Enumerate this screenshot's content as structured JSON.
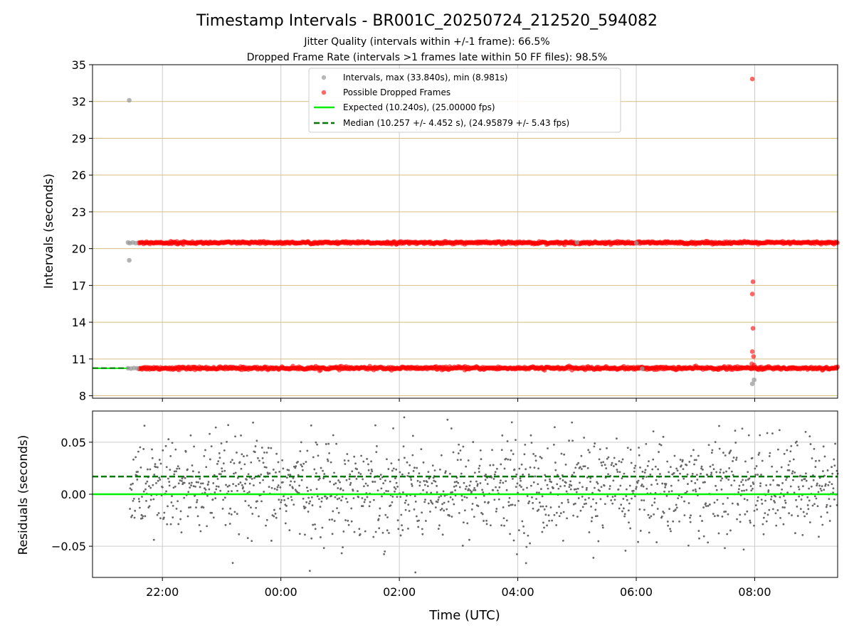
{
  "figure": {
    "title": "Timestamp Intervals - BR001C_20250724_212520_594082",
    "subtitle_1": "Jitter Quality (intervals within +/-1 frame): 66.5%",
    "subtitle_2": "Dropped Frame Rate (intervals >1 frames late within 50 FF files): 98.5%",
    "xlabel": "Time (UTC)"
  },
  "colors": {
    "intervals": "#999999",
    "dropped": "#ff0000",
    "expected": "#00ee00",
    "median": "#007700",
    "residuals": "#666666",
    "hgrid_top": "#d8bf80",
    "grid": "#cccccc"
  },
  "chart_data": [
    {
      "id": "intervals-panel",
      "type": "scatter",
      "ylabel": "Intervals (seconds)",
      "x_unit": "hours since 21:00 UTC (tick labels shown as HH:MM)",
      "xlim": [
        20.82,
        33.4
      ],
      "ylim": [
        7.8,
        35.0
      ],
      "yticks": [
        8,
        11,
        14,
        17,
        20,
        23,
        26,
        29,
        32,
        35
      ],
      "xticks": [
        22,
        24,
        26,
        28,
        30,
        32
      ],
      "xticklabels": [
        "22:00",
        "00:00",
        "02:00",
        "04:00",
        "06:00",
        "08:00"
      ],
      "grid": "horizontal",
      "legend_position": "top-center",
      "legend": [
        "Intervals, max (33.840s), min (8.981s)",
        "Possible Dropped Frames",
        "Expected (10.240s), (25.00000 fps)",
        "Median (10.257 +/- 4.452 s), (24.95879 +/- 5.43 fps)"
      ],
      "expected_y": 10.24,
      "median_y": 10.257,
      "series": [
        {
          "name": "Intervals, max (33.840s), min (8.981s)",
          "points": [
            [
              21.44,
              32.1
            ],
            [
              21.42,
              20.5
            ],
            [
              21.45,
              20.45
            ],
            [
              21.5,
              20.5
            ],
            [
              21.55,
              20.45
            ],
            [
              21.44,
              19.05
            ],
            [
              21.42,
              10.25
            ],
            [
              21.47,
              10.22
            ],
            [
              21.52,
              10.26
            ],
            [
              21.57,
              10.24
            ],
            [
              31.96,
              8.98
            ],
            [
              31.99,
              9.3
            ],
            [
              29.0,
              20.5
            ],
            [
              30.0,
              20.45
            ],
            [
              30.1,
              10.2
            ]
          ]
        },
        {
          "name": "Possible Dropped Frames",
          "band_low": {
            "y": 10.25,
            "x_start": 21.6,
            "x_end": 33.4,
            "spread": 0.12
          },
          "band_high": {
            "y": 20.48,
            "x_start": 21.6,
            "x_end": 33.4,
            "spread": 0.1
          },
          "points": [
            [
              31.96,
              33.84
            ],
            [
              31.97,
              17.3
            ],
            [
              31.96,
              16.3
            ],
            [
              31.97,
              13.5
            ],
            [
              31.96,
              11.6
            ],
            [
              31.98,
              11.2
            ],
            [
              31.95,
              10.6
            ],
            [
              31.99,
              10.5
            ]
          ]
        }
      ]
    },
    {
      "id": "residuals-panel",
      "type": "scatter",
      "ylabel": "Residuals (seconds)",
      "xlim": [
        20.82,
        33.4
      ],
      "ylim": [
        -0.08,
        0.08
      ],
      "yticks": [
        -0.05,
        0.0,
        0.05
      ],
      "yticklabels": [
        "−0.05",
        "0.00",
        "0.05"
      ],
      "xticks": [
        22,
        24,
        26,
        28,
        30,
        32
      ],
      "xticklabels": [
        "22:00",
        "00:00",
        "02:00",
        "04:00",
        "06:00",
        "08:00"
      ],
      "grid": "both",
      "expected_residual": 0.0,
      "median_residual": 0.017,
      "series": [
        {
          "name": "Residuals",
          "x_start": 21.45,
          "x_end": 33.4,
          "n_points": 1500,
          "mean": 0.006,
          "std": 0.024
        }
      ]
    }
  ]
}
